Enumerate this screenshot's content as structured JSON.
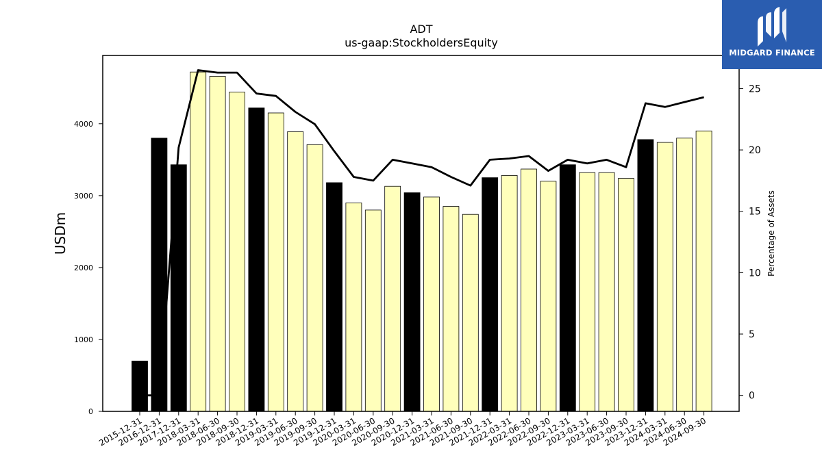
{
  "chart_data": {
    "type": "bar+line",
    "title": "ADT",
    "subtitle": "us-gaap:StockholdersEquity",
    "ylabel": "USDm",
    "y2label": "Percentage of Assets",
    "ylim": [
      0,
      4950
    ],
    "y2lim": [
      -1.3,
      27.7
    ],
    "yticks": [
      0,
      1000,
      2000,
      3000,
      4000
    ],
    "y2ticks": [
      0,
      5,
      10,
      15,
      20,
      25
    ],
    "categories": [
      "2015-12-31",
      "2016-12-31",
      "2017-12-31",
      "2018-03-31",
      "2018-06-30",
      "2018-09-30",
      "2018-12-31",
      "2019-03-31",
      "2019-06-30",
      "2019-09-30",
      "2019-12-31",
      "2020-03-31",
      "2020-06-30",
      "2020-09-30",
      "2020-12-31",
      "2021-03-31",
      "2021-06-30",
      "2021-09-30",
      "2021-12-31",
      "2022-03-31",
      "2022-06-30",
      "2022-09-30",
      "2022-12-31",
      "2023-03-31",
      "2023-06-30",
      "2023-09-30",
      "2023-12-31",
      "2024-03-31",
      "2024-06-30",
      "2024-09-30"
    ],
    "bars": {
      "values": [
        700,
        3800,
        3430,
        4720,
        4660,
        4440,
        4220,
        4150,
        3890,
        3710,
        3180,
        2900,
        2800,
        3130,
        3040,
        2980,
        2850,
        2740,
        3250,
        3280,
        3370,
        3200,
        3430,
        3320,
        3320,
        3240,
        3780,
        3740,
        3800,
        3900
      ],
      "annual": [
        true,
        true,
        true,
        false,
        false,
        false,
        true,
        false,
        false,
        false,
        true,
        false,
        false,
        false,
        true,
        false,
        false,
        false,
        true,
        false,
        false,
        false,
        true,
        false,
        false,
        false,
        true,
        false,
        false,
        false
      ]
    },
    "line": {
      "values": [
        0.0,
        0.0,
        20.2,
        26.5,
        26.3,
        26.3,
        24.6,
        24.4,
        23.1,
        22.1,
        19.9,
        17.8,
        17.5,
        19.2,
        18.9,
        18.6,
        17.8,
        17.1,
        19.2,
        19.3,
        19.5,
        18.3,
        19.2,
        18.9,
        19.2,
        18.6,
        23.8,
        23.5,
        23.9,
        24.3
      ]
    },
    "colors": {
      "annual": "#000000",
      "quarterly": "#ffffbb",
      "edge": "#000000",
      "line": "#000000"
    },
    "grid": false,
    "legend": "none"
  },
  "logo": {
    "text": "MIDGARD FINANCE",
    "background": "#2a5db0"
  }
}
